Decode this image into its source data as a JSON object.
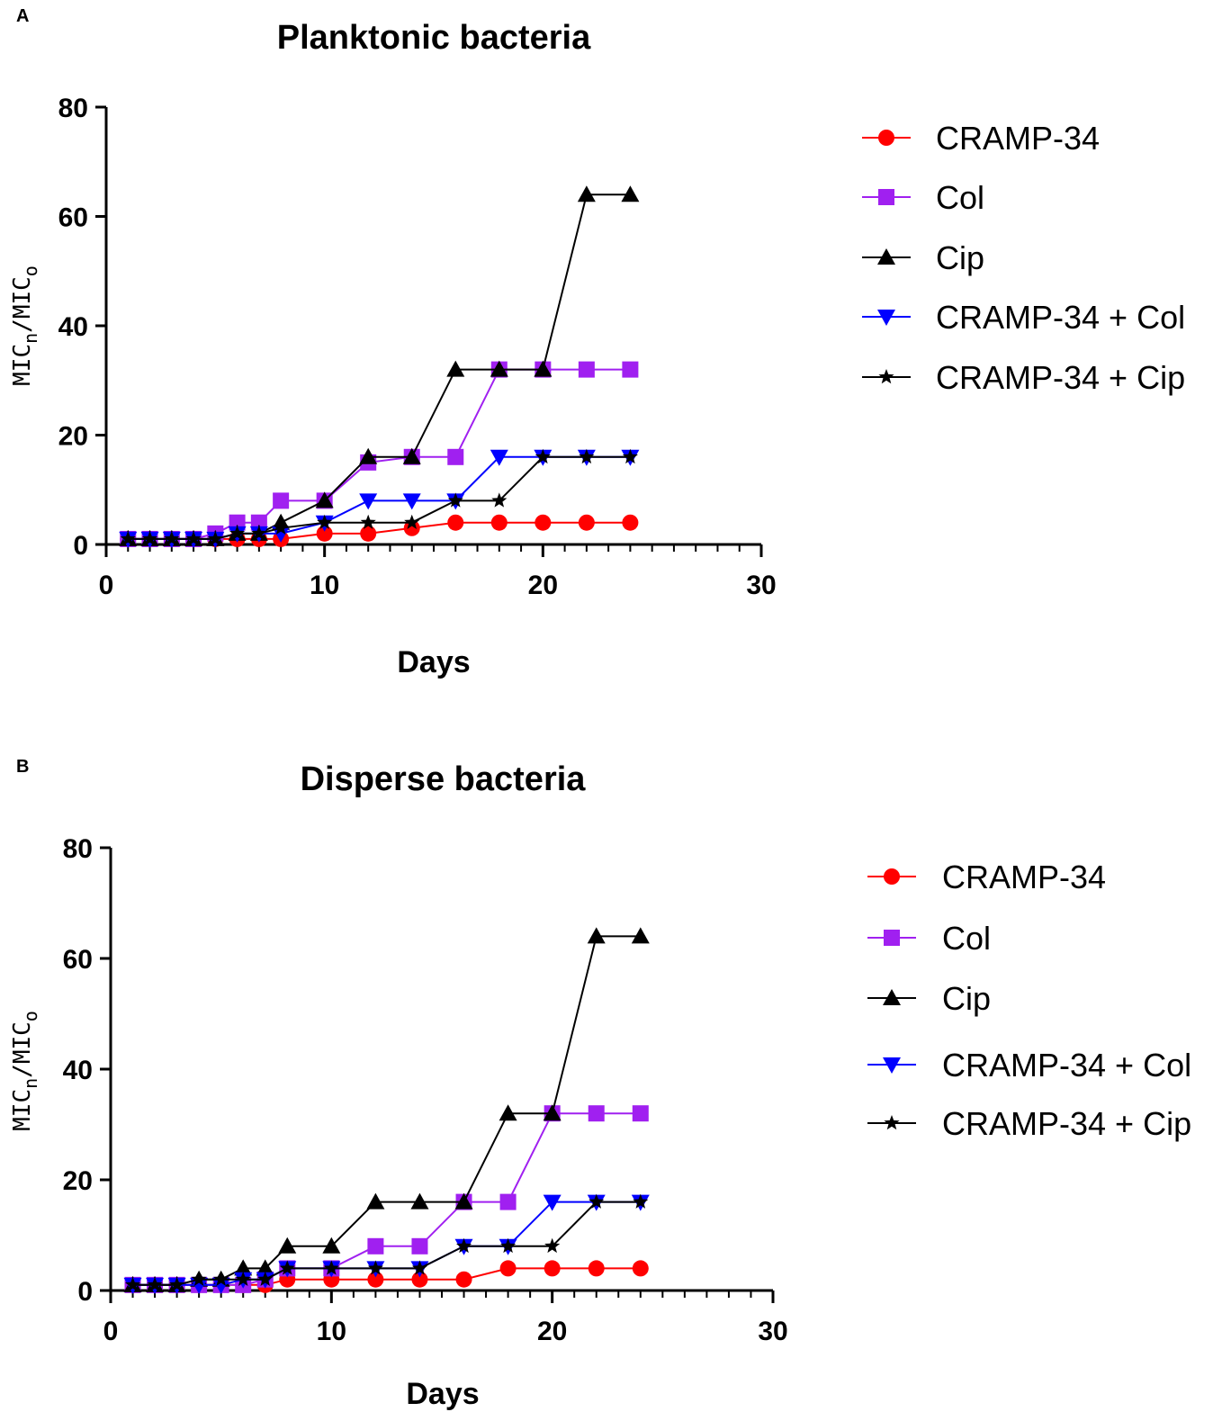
{
  "colors": {
    "red": "#ff0000",
    "purple": "#a020f0",
    "black": "#000000",
    "blue": "#0000ff"
  },
  "chart_data": [
    {
      "panel": "A",
      "type": "line",
      "title": "Planktonic bacteria",
      "xlabel": "Days",
      "ylabel": "MIC_n/MIC_o",
      "ylabel_main_1": "MIC",
      "ylabel_sub_1": "n",
      "ylabel_slash": "/MIC",
      "ylabel_sub_2": "o",
      "xlim": [
        0,
        30
      ],
      "ylim": [
        0,
        80
      ],
      "xticks": [
        "0",
        "10",
        "20",
        "30"
      ],
      "yticks": [
        "0",
        "20",
        "40",
        "60",
        "80"
      ],
      "series": [
        {
          "name": "CRAMP-34",
          "color": "#ff0000",
          "marker": "circle",
          "x": [
            1,
            2,
            3,
            4,
            5,
            6,
            7,
            8,
            10,
            12,
            14,
            16,
            18,
            20,
            22,
            24
          ],
          "y": [
            1,
            1,
            1,
            1,
            1,
            1,
            1,
            1,
            2,
            2,
            3,
            4,
            4,
            4,
            4,
            4
          ]
        },
        {
          "name": "Col",
          "color": "#a020f0",
          "marker": "square",
          "x": [
            1,
            2,
            3,
            4,
            5,
            6,
            7,
            8,
            10,
            12,
            14,
            16,
            18,
            20,
            22,
            24
          ],
          "y": [
            1,
            1,
            1,
            1,
            2,
            4,
            4,
            8,
            8,
            15,
            16,
            16,
            32,
            32,
            32,
            32
          ]
        },
        {
          "name": "Cip",
          "color": "#000000",
          "marker": "triangle-up",
          "x": [
            1,
            2,
            3,
            4,
            5,
            6,
            7,
            8,
            10,
            12,
            14,
            16,
            18,
            20,
            22,
            24
          ],
          "y": [
            1,
            1,
            1,
            1,
            1,
            2,
            2,
            4,
            8,
            16,
            16,
            32,
            32,
            32,
            64,
            64
          ]
        },
        {
          "name": "CRAMP-34 + Col",
          "color": "#0000ff",
          "marker": "triangle-down",
          "x": [
            1,
            2,
            3,
            4,
            5,
            6,
            7,
            8,
            10,
            12,
            14,
            16,
            18,
            20,
            22,
            24
          ],
          "y": [
            1,
            1,
            1,
            1,
            1,
            2,
            2,
            2,
            4,
            8,
            8,
            8,
            16,
            16,
            16,
            16
          ]
        },
        {
          "name": "CRAMP-34 + Cip",
          "color": "#000000",
          "marker": "star",
          "x": [
            1,
            2,
            3,
            4,
            5,
            6,
            7,
            8,
            10,
            12,
            14,
            16,
            18,
            20,
            22,
            24
          ],
          "y": [
            1,
            1,
            1,
            1,
            1,
            2,
            2,
            3,
            4,
            4,
            4,
            8,
            8,
            16,
            16,
            16
          ]
        }
      ]
    },
    {
      "panel": "B",
      "type": "line",
      "title": "Disperse bacteria",
      "xlabel": "Days",
      "ylabel": "MIC_n/MIC_o",
      "ylabel_main_1": "MIC",
      "ylabel_sub_1": "n",
      "ylabel_slash": "/MIC",
      "ylabel_sub_2": "o",
      "xlim": [
        0,
        30
      ],
      "ylim": [
        0,
        80
      ],
      "xticks": [
        "0",
        "10",
        "20",
        "30"
      ],
      "yticks": [
        "0",
        "20",
        "40",
        "60",
        "80"
      ],
      "series": [
        {
          "name": "CRAMP-34",
          "color": "#ff0000",
          "marker": "circle",
          "x": [
            1,
            2,
            3,
            4,
            5,
            6,
            7,
            8,
            10,
            12,
            14,
            16,
            18,
            20,
            22,
            24
          ],
          "y": [
            1,
            1,
            1,
            1,
            1,
            1,
            1,
            2,
            2,
            2,
            2,
            2,
            4,
            4,
            4,
            4
          ]
        },
        {
          "name": "Col",
          "color": "#a020f0",
          "marker": "square",
          "x": [
            1,
            2,
            3,
            4,
            5,
            6,
            7,
            8,
            10,
            12,
            14,
            16,
            18,
            20,
            22,
            24
          ],
          "y": [
            1,
            1,
            1,
            1,
            1,
            1,
            2,
            4,
            4,
            8,
            8,
            16,
            16,
            32,
            32,
            32
          ]
        },
        {
          "name": "Cip",
          "color": "#000000",
          "marker": "triangle-up",
          "x": [
            1,
            2,
            3,
            4,
            5,
            6,
            7,
            8,
            10,
            12,
            14,
            16,
            18,
            20,
            22,
            24
          ],
          "y": [
            1,
            1,
            1,
            2,
            2,
            4,
            4,
            8,
            8,
            16,
            16,
            16,
            32,
            32,
            64,
            64
          ]
        },
        {
          "name": "CRAMP-34 + Col",
          "color": "#0000ff",
          "marker": "triangle-down",
          "x": [
            1,
            2,
            3,
            4,
            5,
            6,
            7,
            8,
            10,
            12,
            14,
            16,
            18,
            20,
            22,
            24
          ],
          "y": [
            1,
            1,
            1,
            1,
            1,
            2,
            2,
            4,
            4,
            4,
            4,
            8,
            8,
            16,
            16,
            16
          ]
        },
        {
          "name": "CRAMP-34 + Cip",
          "color": "#000000",
          "marker": "star",
          "x": [
            1,
            2,
            3,
            4,
            5,
            6,
            7,
            8,
            10,
            12,
            14,
            16,
            18,
            20,
            22,
            24
          ],
          "y": [
            1,
            1,
            1,
            2,
            2,
            2,
            2,
            4,
            4,
            4,
            4,
            8,
            8,
            8,
            16,
            16
          ]
        }
      ]
    }
  ]
}
